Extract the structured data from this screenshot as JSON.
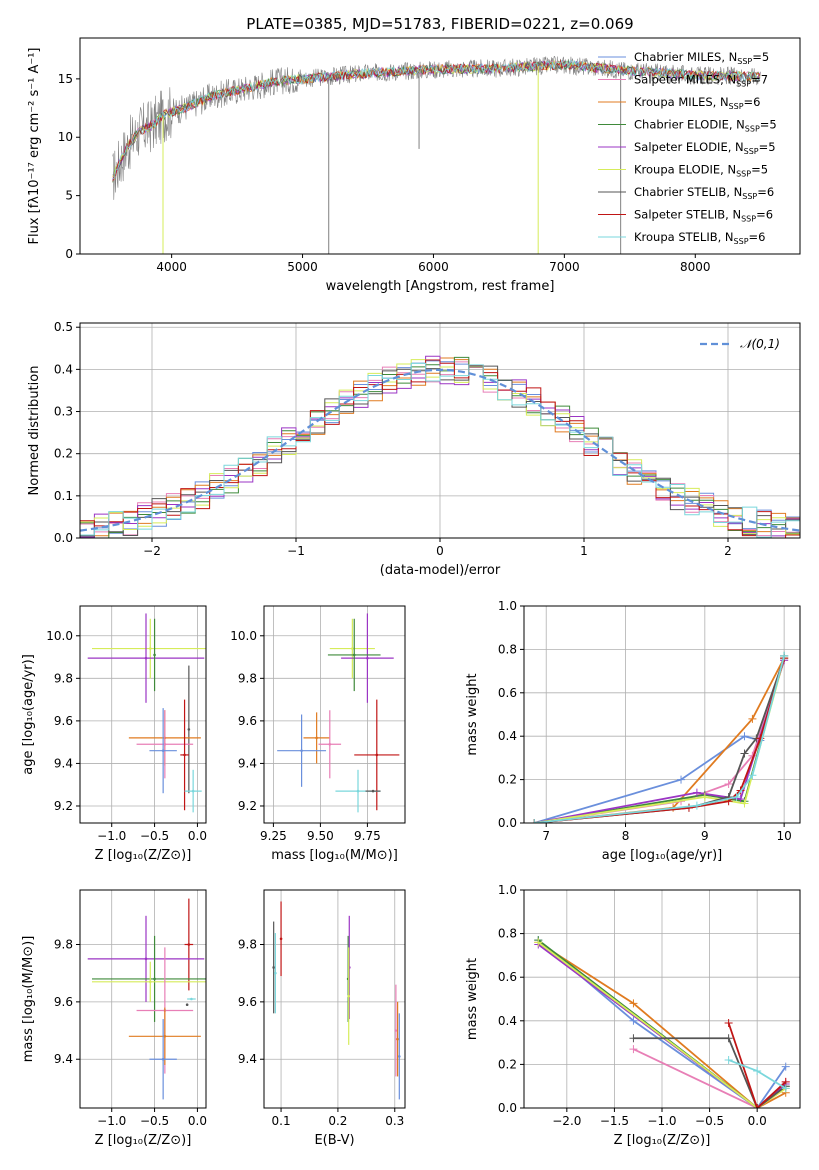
{
  "figure_title": "PLATE=0385, MJD=51783, FIBERID=0221, z=0.069",
  "colors": {
    "Chabrier MILES": "#6a8fdc",
    "Salpeter MILES": "#e87fb6",
    "Kroupa MILES": "#e07b20",
    "Chabrier ELODIE": "#3f8a3a",
    "Salpeter ELODIE": "#9b35c4",
    "Kroupa ELODIE": "#d6ec5a",
    "Chabrier STELIB": "#555555",
    "Salpeter STELIB": "#c01515",
    "Kroupa STELIB": "#7ad7dc",
    "data": "#808080",
    "normal": "#6090d8",
    "grid": "#b0b0b0"
  },
  "chart_data": [
    {
      "id": "spectrum",
      "type": "line",
      "title": "PLATE=0385, MJD=51783, FIBERID=0221, z=0.069",
      "xlabel": "wavelength [Angstrom, rest frame]",
      "ylabel": "Flux [fλ10⁻¹⁷ erg cm⁻² s⁻¹ A⁻¹]",
      "xlim": [
        3300,
        8800
      ],
      "ylim": [
        0,
        18.5
      ],
      "xticks": [
        4000,
        5000,
        6000,
        7000,
        8000
      ],
      "yticks": [
        0,
        5,
        10,
        15
      ],
      "grid": false,
      "legend": "top-right",
      "series": [
        {
          "name": "Chabrier MILES, N_SSP=5"
        },
        {
          "name": "Salpeter MILES, N_SSP=7"
        },
        {
          "name": "Kroupa MILES, N_SSP=6"
        },
        {
          "name": "Chabrier ELODIE, N_SSP=5"
        },
        {
          "name": "Salpeter ELODIE, N_SSP=5"
        },
        {
          "name": "Kroupa ELODIE, N_SSP=5"
        },
        {
          "name": "Chabrier STELIB, N_SSP=6"
        },
        {
          "name": "Salpeter STELIB, N_SSP=6"
        },
        {
          "name": "Kroupa STELIB, N_SSP=6"
        }
      ],
      "continuum": {
        "x": [
          3550,
          3650,
          3750,
          3850,
          3950,
          4100,
          4300,
          4500,
          4800,
          5000,
          5500,
          6000,
          6500,
          7000,
          7500,
          8000,
          8500
        ],
        "y": [
          6.5,
          9,
          10.5,
          11,
          12,
          12.5,
          13.5,
          14,
          14.8,
          15,
          15.5,
          15.8,
          15.9,
          16.2,
          15.7,
          15.3,
          15.2
        ]
      },
      "features": [
        {
          "x": 3934,
          "y": 0
        },
        {
          "x": 5200,
          "y": 0
        },
        {
          "x": 5890,
          "y": 9
        },
        {
          "x": 6800,
          "y": 0
        },
        {
          "x": 7430,
          "y": 0
        }
      ]
    },
    {
      "id": "residuals",
      "type": "histogram",
      "xlabel": "(data-model)/error",
      "ylabel": "Normed distribution",
      "xlim": [
        -2.5,
        2.5
      ],
      "ylim": [
        0,
        0.51
      ],
      "xticks": [
        -2,
        -1,
        0,
        1,
        2
      ],
      "yticks": [
        0.0,
        0.1,
        0.2,
        0.3,
        0.4,
        0.5
      ],
      "grid": true,
      "legend": "top-right",
      "reference": {
        "name": "𝒩(0,1)",
        "mean": 0,
        "sigma": 1
      },
      "bin_width": 0.1
    },
    {
      "id": "age_vs_Z",
      "type": "scatter",
      "xlabel": "Z [log₁₀(Z/Z⊙)]",
      "ylabel": "age  [log₁₀(age/yr)]",
      "xlim": [
        -1.37,
        0.1
      ],
      "ylim": [
        9.12,
        10.14
      ],
      "xticks": [
        -1.0,
        -0.5,
        0.0
      ],
      "yticks": [
        9.2,
        9.4,
        9.6,
        9.8,
        10.0
      ],
      "grid": true,
      "points": [
        {
          "s": "Kroupa ELODIE",
          "x": -0.55,
          "xe": 0.68,
          "y": 9.94,
          "ye": 0.14
        },
        {
          "s": "Salpeter ELODIE",
          "x": -0.6,
          "xe": 0.68,
          "y": 9.895,
          "ye": 0.21
        },
        {
          "s": "Chabrier ELODIE",
          "x": -0.5,
          "xe": 0.0,
          "y": 9.91,
          "ye": 0.17
        },
        {
          "s": "Chabrier STELIB",
          "x": -0.1,
          "xe": 0.0,
          "y": 9.56,
          "ye": 0.3
        },
        {
          "s": "Kroupa MILES",
          "x": -0.38,
          "xe": 0.42,
          "y": 9.52,
          "ye": 0.13
        },
        {
          "s": "Salpeter MILES",
          "x": -0.38,
          "xe": 0.33,
          "y": 9.49,
          "ye": 0.16
        },
        {
          "s": "Chabrier MILES",
          "x": -0.4,
          "xe": 0.16,
          "y": 9.46,
          "ye": 0.2
        },
        {
          "s": "Salpeter STELIB",
          "x": -0.15,
          "xe": 0.05,
          "y": 9.44,
          "ye": 0.26
        },
        {
          "s": "Kroupa STELIB",
          "x": -0.05,
          "xe": 0.1,
          "y": 9.27,
          "ye": 0.1
        }
      ]
    },
    {
      "id": "age_vs_mass",
      "type": "scatter",
      "xlabel": "mass [log₁₀(M/M⊙)]",
      "ylabel": "",
      "xlim": [
        9.2,
        9.95
      ],
      "ylim": [
        9.12,
        10.14
      ],
      "xticks": [
        9.25,
        9.5,
        9.75
      ],
      "yticks": [
        9.2,
        9.4,
        9.6,
        9.8,
        10.0
      ],
      "grid": true,
      "points": [
        {
          "s": "Kroupa ELODIE",
          "x": 9.67,
          "xe": 0.12,
          "y": 9.94,
          "ye": 0.14
        },
        {
          "s": "Salpeter ELODIE",
          "x": 9.75,
          "xe": 0.14,
          "y": 9.895,
          "ye": 0.21
        },
        {
          "s": "Chabrier ELODIE",
          "x": 9.68,
          "xe": 0.14,
          "y": 9.91,
          "ye": 0.17
        },
        {
          "s": "Kroupa MILES",
          "x": 9.48,
          "xe": 0.07,
          "y": 9.52,
          "ye": 0.12
        },
        {
          "s": "Salpeter MILES",
          "x": 9.55,
          "xe": 0.06,
          "y": 9.49,
          "ye": 0.16
        },
        {
          "s": "Chabrier MILES",
          "x": 9.4,
          "xe": 0.13,
          "y": 9.46,
          "ye": 0.17
        },
        {
          "s": "Salpeter STELIB",
          "x": 9.8,
          "xe": 0.12,
          "y": 9.44,
          "ye": 0.26
        },
        {
          "s": "Kroupa STELIB",
          "x": 9.7,
          "xe": 0.12,
          "y": 9.27,
          "ye": 0.1
        },
        {
          "s": "Chabrier STELIB",
          "x": 9.78,
          "xe": 0.04,
          "y": 9.27,
          "ye": 0.0
        }
      ]
    },
    {
      "id": "mw_vs_age",
      "type": "line",
      "xlabel": "age  [log₁₀(age/yr)]",
      "ylabel": "mass weight",
      "xlim": [
        6.72,
        10.2
      ],
      "ylim": [
        0,
        1.0
      ],
      "xticks": [
        7,
        8,
        9,
        10
      ],
      "yticks": [
        0.0,
        0.2,
        0.4,
        0.6,
        0.8,
        1.0
      ],
      "grid": true,
      "series": [
        {
          "s": "Chabrier MILES",
          "x": [
            6.85,
            8.7,
            9.5,
            9.7,
            10.0
          ],
          "y": [
            0.0,
            0.2,
            0.4,
            0.38,
            0.77
          ]
        },
        {
          "s": "Kroupa MILES",
          "x": [
            6.85,
            8.6,
            9.6,
            10.0
          ],
          "y": [
            0.0,
            0.07,
            0.48,
            0.76
          ]
        },
        {
          "s": "Salpeter MILES",
          "x": [
            6.85,
            8.7,
            9.3,
            9.6,
            10.0
          ],
          "y": [
            0.0,
            0.1,
            0.18,
            0.31,
            0.75
          ]
        },
        {
          "s": "Chabrier ELODIE",
          "x": [
            6.85,
            9.0,
            9.5,
            10.0
          ],
          "y": [
            0.0,
            0.13,
            0.1,
            0.77
          ]
        },
        {
          "s": "Salpeter ELODIE",
          "x": [
            6.85,
            8.9,
            9.45,
            10.0
          ],
          "y": [
            0.0,
            0.14,
            0.11,
            0.75
          ]
        },
        {
          "s": "Kroupa ELODIE",
          "x": [
            6.85,
            9.0,
            9.5,
            10.0
          ],
          "y": [
            0.0,
            0.12,
            0.09,
            0.76
          ]
        },
        {
          "s": "Chabrier STELIB",
          "x": [
            6.85,
            8.8,
            9.3,
            9.5,
            9.65,
            10.0
          ],
          "y": [
            0.0,
            0.07,
            0.12,
            0.32,
            0.39,
            0.76
          ]
        },
        {
          "s": "Salpeter STELIB",
          "x": [
            6.85,
            8.8,
            9.3,
            9.45,
            9.7,
            10.0
          ],
          "y": [
            0.0,
            0.07,
            0.1,
            0.15,
            0.39,
            0.76
          ]
        },
        {
          "s": "Kroupa STELIB",
          "x": [
            6.85,
            8.9,
            9.4,
            9.6,
            10.0
          ],
          "y": [
            0.0,
            0.08,
            0.12,
            0.22,
            0.77
          ]
        }
      ]
    },
    {
      "id": "mass_vs_Z",
      "type": "scatter",
      "xlabel": "Z [log₁₀(Z/Z⊙)]",
      "ylabel": "mass [log₁₀(M/M⊙)]",
      "xlim": [
        -1.37,
        0.1
      ],
      "ylim": [
        9.23,
        9.99
      ],
      "xticks": [
        -1.0,
        -0.5,
        0.0
      ],
      "yticks": [
        9.4,
        9.6,
        9.8
      ],
      "grid": true,
      "points": [
        {
          "s": "Salpeter STELIB",
          "x": -0.1,
          "xe": 0.05,
          "y": 9.8,
          "ye": 0.16
        },
        {
          "s": "Salpeter ELODIE",
          "x": -0.6,
          "xe": 0.68,
          "y": 9.75,
          "ye": 0.15
        },
        {
          "s": "Chabrier ELODIE",
          "x": -0.5,
          "xe": 0.73,
          "y": 9.68,
          "ye": 0.15
        },
        {
          "s": "Kroupa ELODIE",
          "x": -0.55,
          "xe": 0.68,
          "y": 9.67,
          "ye": 0.07
        },
        {
          "s": "Kroupa STELIB",
          "x": -0.07,
          "xe": 0.05,
          "y": 9.61,
          "ye": 0.0
        },
        {
          "s": "Chabrier STELIB",
          "x": -0.12,
          "xe": 0.0,
          "y": 9.59,
          "ye": 0.0
        },
        {
          "s": "Salpeter MILES",
          "x": -0.38,
          "xe": 0.33,
          "y": 9.57,
          "ye": 0.22
        },
        {
          "s": "Kroupa MILES",
          "x": -0.38,
          "xe": 0.42,
          "y": 9.48,
          "ye": 0.1
        },
        {
          "s": "Chabrier MILES",
          "x": -0.4,
          "xe": 0.16,
          "y": 9.4,
          "ye": 0.14
        }
      ]
    },
    {
      "id": "mass_vs_ebv",
      "type": "scatter",
      "xlabel": "E(B-V)",
      "ylabel": "",
      "xlim": [
        0.07,
        0.318
      ],
      "ylim": [
        9.23,
        9.99
      ],
      "xticks": [
        0.1,
        0.2,
        0.3
      ],
      "yticks": [
        9.4,
        9.6,
        9.8
      ],
      "grid": true,
      "points": [
        {
          "s": "Chabrier STELIB",
          "x": 0.087,
          "xe": 0.0,
          "y": 9.72,
          "ye": 0.16
        },
        {
          "s": "Kroupa STELIB",
          "x": 0.09,
          "xe": 0.0,
          "y": 9.7,
          "ye": 0.14
        },
        {
          "s": "Salpeter STELIB",
          "x": 0.1,
          "xe": 0.0,
          "y": 9.82,
          "ye": 0.13
        },
        {
          "s": "Chabrier ELODIE",
          "x": 0.218,
          "xe": 0.0,
          "y": 9.68,
          "ye": 0.15
        },
        {
          "s": "Salpeter ELODIE",
          "x": 0.22,
          "xe": 0.0,
          "y": 9.72,
          "ye": 0.18
        },
        {
          "s": "Kroupa ELODIE",
          "x": 0.219,
          "xe": 0.0,
          "y": 9.62,
          "ye": 0.17
        },
        {
          "s": "Salpeter MILES",
          "x": 0.302,
          "xe": 0.0,
          "y": 9.5,
          "ye": 0.16
        },
        {
          "s": "Kroupa MILES",
          "x": 0.305,
          "xe": 0.0,
          "y": 9.47,
          "ye": 0.13
        },
        {
          "s": "Chabrier MILES",
          "x": 0.308,
          "xe": 0.0,
          "y": 9.41,
          "ye": 0.15
        }
      ]
    },
    {
      "id": "mw_vs_Z",
      "type": "line",
      "xlabel": "Z [log₁₀(Z/Z⊙)]",
      "ylabel": "mass weight",
      "xlim": [
        -2.45,
        0.45
      ],
      "ylim": [
        0,
        1.0
      ],
      "xticks": [
        -2.0,
        -1.5,
        -1.0,
        -0.5,
        0.0
      ],
      "yticks": [
        0.0,
        0.2,
        0.4,
        0.6,
        0.8,
        1.0
      ],
      "grid": true,
      "series": [
        {
          "s": "Chabrier MILES",
          "x": [
            -2.3,
            -1.3,
            0.0,
            0.3
          ],
          "y": [
            0.77,
            0.4,
            0.0,
            0.19
          ]
        },
        {
          "s": "Salpeter MILES",
          "x": [
            -1.3,
            0.0,
            0.3
          ],
          "y": [
            0.27,
            0.0,
            0.12
          ]
        },
        {
          "s": "Kroupa MILES",
          "x": [
            -2.3,
            -1.3,
            0.0,
            0.3
          ],
          "y": [
            0.76,
            0.48,
            0.0,
            0.07
          ]
        },
        {
          "s": "Chabrier ELODIE",
          "x": [
            -2.3,
            0.0,
            0.3
          ],
          "y": [
            0.77,
            0.0,
            0.1
          ]
        },
        {
          "s": "Salpeter ELODIE",
          "x": [
            -2.3,
            0.0,
            0.3
          ],
          "y": [
            0.75,
            0.0,
            0.11
          ]
        },
        {
          "s": "Kroupa ELODIE",
          "x": [
            -2.3,
            0.0,
            0.3
          ],
          "y": [
            0.76,
            0.0,
            0.09
          ]
        },
        {
          "s": "Chabrier STELIB",
          "x": [
            -1.3,
            -0.3,
            0.0,
            0.3
          ],
          "y": [
            0.32,
            0.32,
            0.0,
            0.1
          ]
        },
        {
          "s": "Salpeter STELIB",
          "x": [
            -0.3,
            0.0,
            0.3
          ],
          "y": [
            0.39,
            0.0,
            0.12
          ]
        },
        {
          "s": "Kroupa STELIB",
          "x": [
            -0.3,
            0.0,
            0.3
          ],
          "y": [
            0.22,
            0.17,
            0.09
          ]
        }
      ]
    }
  ]
}
